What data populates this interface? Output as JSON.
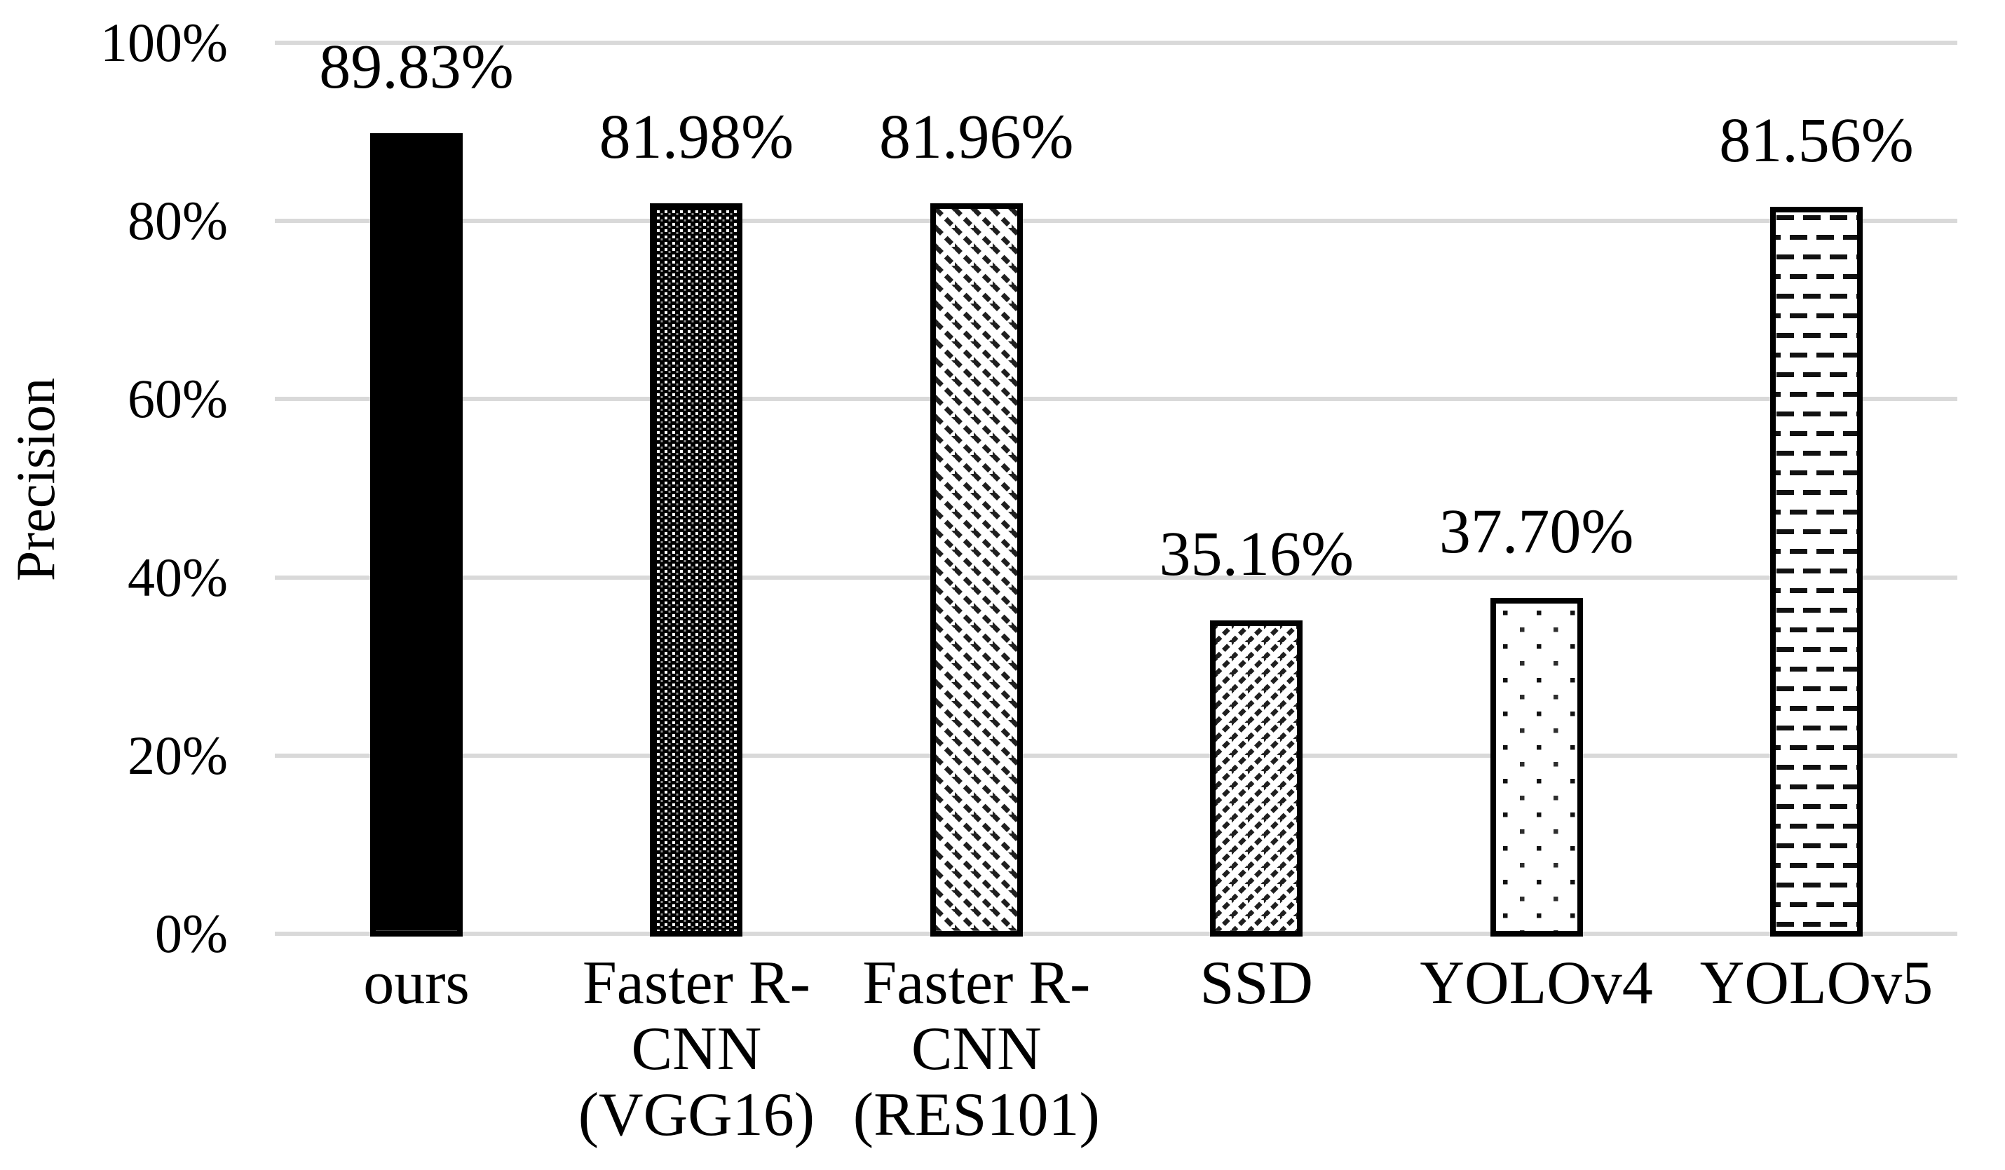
{
  "chart_data": {
    "type": "bar",
    "title": "",
    "xlabel": "",
    "ylabel": "Precision",
    "categories": [
      "ours",
      "Faster R-CNN (VGG16)",
      "Faster R-CNN (RES101)",
      "SSD",
      "YOLOv4",
      "YOLOv5"
    ],
    "category_lines": [
      [
        "ours"
      ],
      [
        "Faster R-",
        "CNN",
        "(VGG16)"
      ],
      [
        "Faster R-",
        "CNN",
        "(RES101)"
      ],
      [
        "SSD"
      ],
      [
        "YOLOv4"
      ],
      [
        "YOLOv5"
      ]
    ],
    "values": [
      89.83,
      81.98,
      81.96,
      35.16,
      37.7,
      81.56
    ],
    "value_labels": [
      "89.83%",
      "81.98%",
      "81.96%",
      "35.16%",
      "37.70%",
      "81.56%"
    ],
    "bar_patterns": [
      "solid-black",
      "dense-dot-grid",
      "diagonal-down-dashes",
      "diagonal-up-dashes",
      "sparse-dots",
      "horizontal-dashes"
    ],
    "y_ticks": [
      "100%",
      "80%",
      "60%",
      "40%",
      "20%",
      "0%"
    ],
    "y_tick_values": [
      100,
      80,
      60,
      40,
      20,
      0
    ],
    "ylim": [
      0,
      100
    ],
    "grid": true,
    "legend_position": "none",
    "colors": {
      "bar_outline": "#000000",
      "pattern_ink": "#111111",
      "gridline": "#d9d9d9",
      "text": "#000000",
      "background": "#ffffff"
    }
  }
}
